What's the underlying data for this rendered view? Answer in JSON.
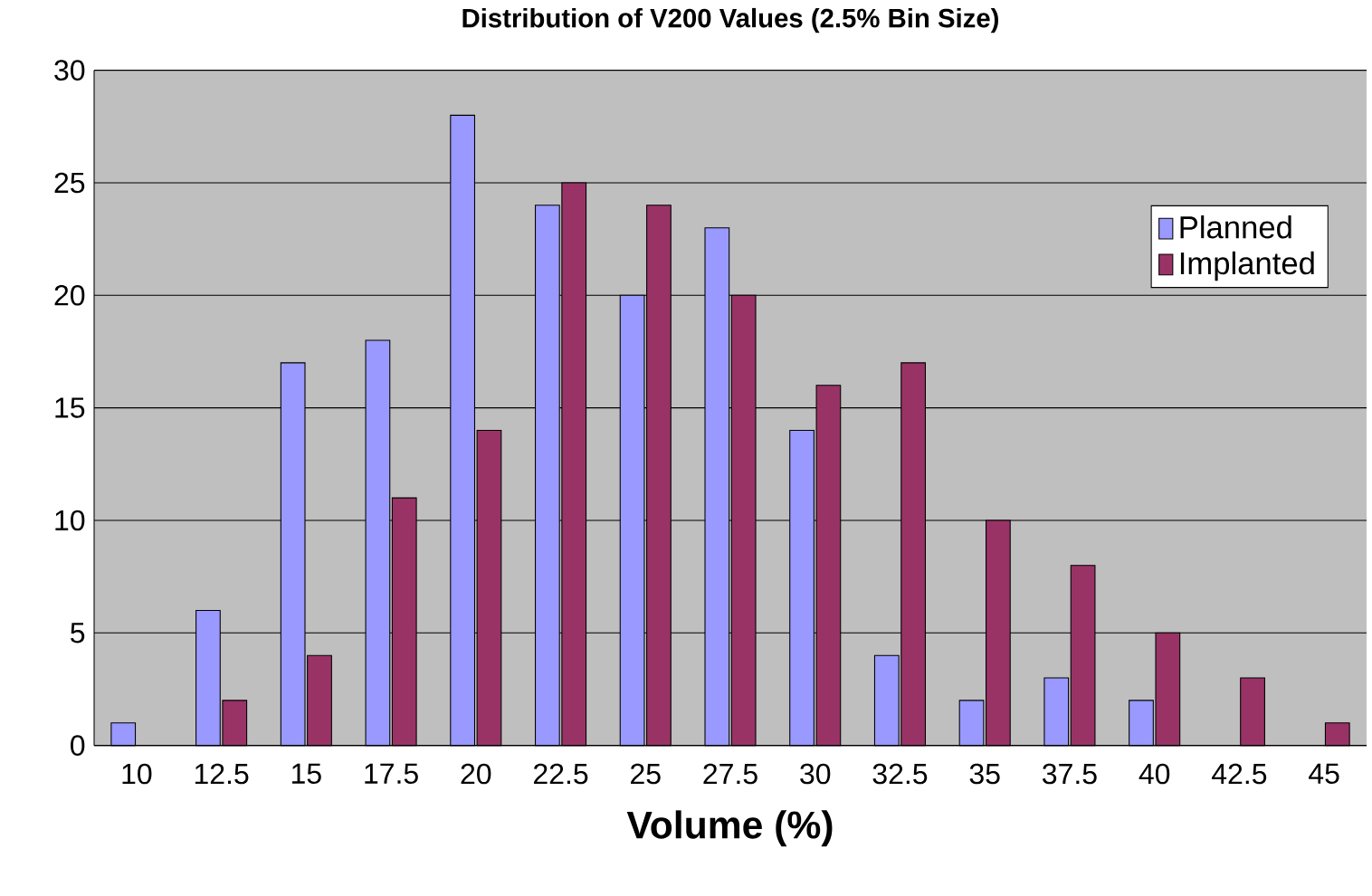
{
  "chart_data": {
    "type": "bar",
    "title": "Distribution of V200 Values (2.5% Bin Size)",
    "xlabel": "Volume (%)",
    "categories": [
      "10",
      "12.5",
      "15",
      "17.5",
      "20",
      "22.5",
      "25",
      "27.5",
      "30",
      "32.5",
      "35",
      "37.5",
      "40",
      "42.5",
      "45"
    ],
    "series": [
      {
        "name": "Planned",
        "color": "#9999ff",
        "values": [
          1,
          6,
          17,
          18,
          28,
          24,
          20,
          23,
          14,
          4,
          2,
          3,
          2,
          0,
          0
        ]
      },
      {
        "name": "Implanted",
        "color": "#993366",
        "values": [
          0,
          2,
          4,
          11,
          14,
          25,
          24,
          20,
          16,
          17,
          10,
          8,
          5,
          3,
          1
        ]
      }
    ],
    "ylim": [
      0,
      30
    ],
    "yticks": [
      0,
      5,
      10,
      15,
      20,
      25,
      30
    ],
    "grid": "y",
    "legend": "top right"
  }
}
